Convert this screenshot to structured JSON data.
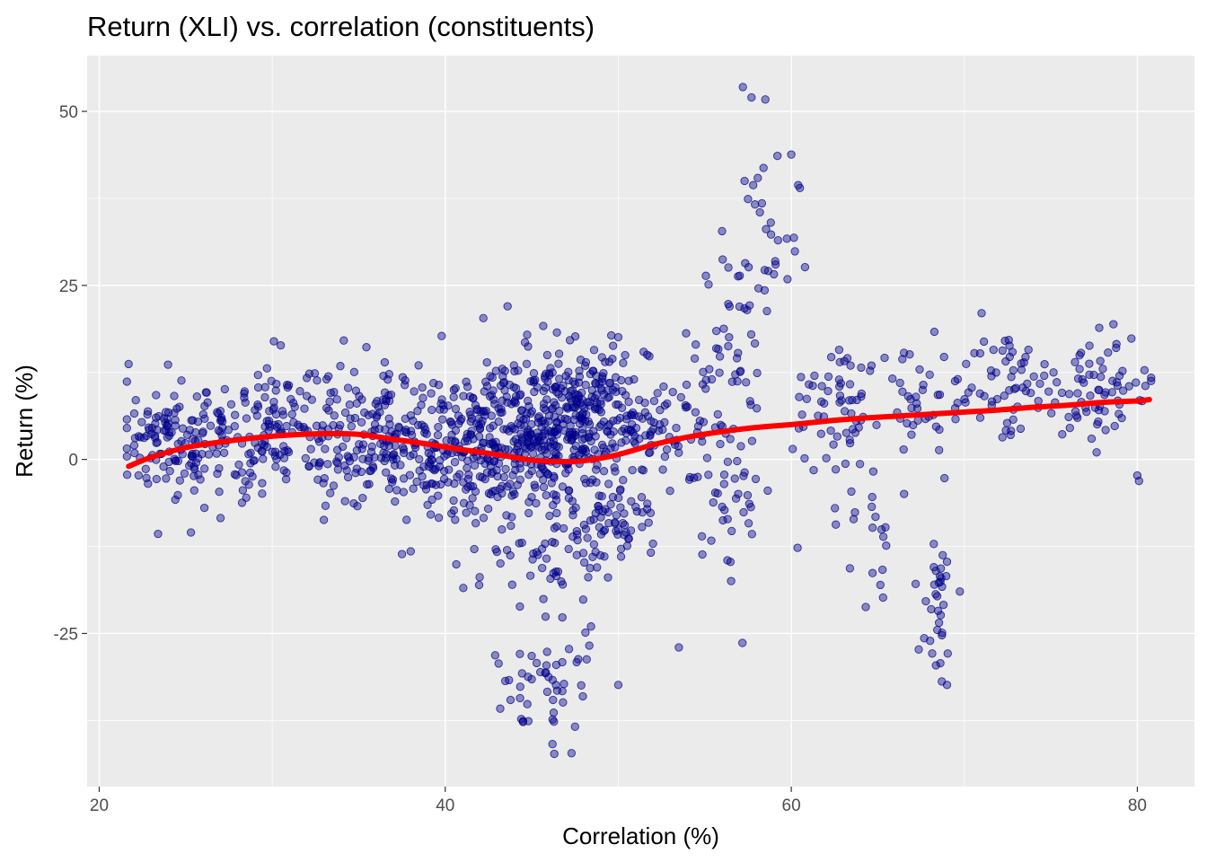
{
  "chart_data": {
    "type": "scatter",
    "title": "Return (XLI) vs. correlation (constituents)",
    "xlabel": "Correlation (%)",
    "ylabel": "Return (%)",
    "xlim": [
      19.3,
      83.3
    ],
    "ylim": [
      -47.0,
      58.0
    ],
    "x_ticks": [
      20,
      40,
      60,
      80
    ],
    "y_ticks": [
      -25,
      0,
      25,
      50
    ],
    "x_tick_labels": [
      "20",
      "40",
      "60",
      "80"
    ],
    "y_tick_labels": [
      "-25",
      "0",
      "25",
      "50"
    ],
    "grid": true,
    "legend": "none",
    "colors": {
      "panel_background": "#ebebeb",
      "grid": "#ffffff",
      "points": "#00008b",
      "smooth_line": "#ff0000"
    },
    "point_clusters": [
      {
        "x": 24.0,
        "y": 3.0,
        "sx": 1.6,
        "sy": 4.2,
        "n": 110
      },
      {
        "x": 30.5,
        "y": 4.0,
        "sx": 3.0,
        "sy": 4.8,
        "n": 190
      },
      {
        "x": 36.5,
        "y": 2.5,
        "sx": 2.2,
        "sy": 5.2,
        "n": 150
      },
      {
        "x": 41.0,
        "y": 2.0,
        "sx": 1.8,
        "sy": 5.2,
        "n": 170
      },
      {
        "x": 45.0,
        "y": 4.5,
        "sx": 1.8,
        "sy": 5.2,
        "n": 260
      },
      {
        "x": 48.5,
        "y": 6.0,
        "sx": 1.6,
        "sy": 5.0,
        "n": 210
      },
      {
        "x": 49.5,
        "y": -9.0,
        "sx": 1.2,
        "sy": 3.5,
        "n": 60
      },
      {
        "x": 46.0,
        "y": -12.0,
        "sx": 2.0,
        "sy": 3.8,
        "n": 60
      },
      {
        "x": 46.0,
        "y": -31.0,
        "sx": 1.6,
        "sy": 4.2,
        "n": 48
      },
      {
        "x": 52.0,
        "y": 5.0,
        "sx": 1.5,
        "sy": 4.2,
        "n": 50
      },
      {
        "x": 55.5,
        "y": 6.0,
        "sx": 1.3,
        "sy": 6.5,
        "n": 50
      },
      {
        "x": 56.5,
        "y": -8.0,
        "sx": 1.2,
        "sy": 6.0,
        "n": 30
      },
      {
        "x": 57.0,
        "y": 20.0,
        "sx": 0.9,
        "sy": 5.0,
        "n": 24
      },
      {
        "x": 59.0,
        "y": 32.0,
        "sx": 0.9,
        "sy": 6.0,
        "n": 18
      },
      {
        "x": 63.0,
        "y": 9.0,
        "sx": 1.6,
        "sy": 4.2,
        "n": 60
      },
      {
        "x": 64.5,
        "y": -9.0,
        "sx": 1.0,
        "sy": 4.2,
        "n": 22
      },
      {
        "x": 67.0,
        "y": 6.0,
        "sx": 1.5,
        "sy": 4.5,
        "n": 40
      },
      {
        "x": 68.5,
        "y": -21.0,
        "sx": 0.5,
        "sy": 4.8,
        "n": 32
      },
      {
        "x": 72.5,
        "y": 11.0,
        "sx": 1.5,
        "sy": 3.8,
        "n": 55
      },
      {
        "x": 77.5,
        "y": 10.0,
        "sx": 1.8,
        "sy": 4.0,
        "n": 70
      }
    ],
    "outlier_points": [
      {
        "x": 21.7,
        "y": 13.7
      },
      {
        "x": 57.2,
        "y": 53.5
      },
      {
        "x": 57.7,
        "y": 52.0
      },
      {
        "x": 58.5,
        "y": 51.7
      },
      {
        "x": 59.2,
        "y": 43.6
      },
      {
        "x": 60.0,
        "y": 43.8
      },
      {
        "x": 60.4,
        "y": 39.4
      },
      {
        "x": 60.5,
        "y": 39.0
      },
      {
        "x": 57.3,
        "y": 40.0
      },
      {
        "x": 57.8,
        "y": 39.4
      },
      {
        "x": 58.3,
        "y": 36.8
      },
      {
        "x": 57.5,
        "y": 37.4
      },
      {
        "x": 56.0,
        "y": 32.8
      },
      {
        "x": 59.0,
        "y": 26.6
      },
      {
        "x": 71.0,
        "y": 21.0
      },
      {
        "x": 77.8,
        "y": 18.9
      },
      {
        "x": 43.6,
        "y": 22.0
      },
      {
        "x": 42.2,
        "y": 20.3
      },
      {
        "x": 80.0,
        "y": -2.3
      },
      {
        "x": 80.1,
        "y": -3.1
      },
      {
        "x": 47.3,
        "y": -42.2
      },
      {
        "x": 46.3,
        "y": -42.3
      },
      {
        "x": 46.2,
        "y": -40.9
      },
      {
        "x": 47.5,
        "y": -38.4
      },
      {
        "x": 44.8,
        "y": -37.6
      },
      {
        "x": 44.5,
        "y": -37.6
      },
      {
        "x": 23.4,
        "y": -10.7
      },
      {
        "x": 25.3,
        "y": -10.5
      },
      {
        "x": 69.0,
        "y": -32.4
      },
      {
        "x": 68.7,
        "y": -31.9
      },
      {
        "x": 64.3,
        "y": -21.2
      },
      {
        "x": 50.0,
        "y": -32.4
      },
      {
        "x": 37.5,
        "y": -13.6
      },
      {
        "x": 38.0,
        "y": -13.2
      },
      {
        "x": 53.5,
        "y": -27.0
      },
      {
        "x": 69.0,
        "y": -14.7
      }
    ],
    "smooth_line": {
      "x": [
        21.7,
        23.0,
        25.0,
        27.0,
        29.0,
        31.0,
        33.0,
        35.0,
        37.0,
        39.0,
        41.0,
        43.0,
        45.0,
        46.5,
        48.0,
        50.0,
        52.0,
        54.0,
        56.0,
        58.0,
        60.0,
        62.0,
        64.0,
        66.0,
        68.0,
        70.0,
        72.0,
        74.0,
        76.0,
        78.0,
        80.0,
        80.7
      ],
      "y": [
        -1.0,
        0.3,
        1.7,
        2.5,
        3.1,
        3.5,
        3.7,
        3.6,
        2.9,
        2.2,
        1.4,
        0.7,
        -0.1,
        -0.3,
        -0.2,
        0.7,
        2.1,
        3.2,
        4.0,
        4.6,
        5.0,
        5.5,
        5.9,
        6.2,
        6.5,
        6.8,
        7.1,
        7.5,
        7.8,
        8.2,
        8.4,
        8.6
      ]
    }
  }
}
